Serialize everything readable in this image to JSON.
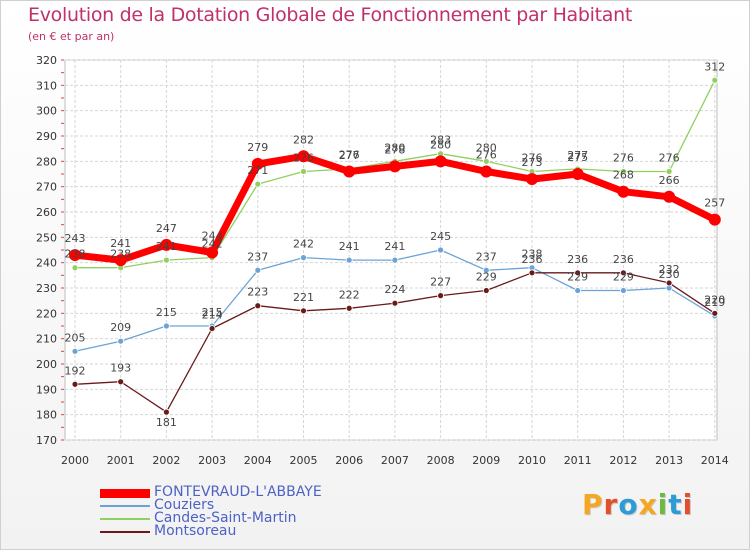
{
  "chart_data": {
    "type": "line",
    "title": "Evolution de la Dotation Globale de Fonctionnement par Habitant",
    "subtitle": "(en € et par an)",
    "xlabel": "",
    "ylabel": "",
    "categories": [
      "2000",
      "2001",
      "2002",
      "2003",
      "2004",
      "2005",
      "2006",
      "2007",
      "2008",
      "2009",
      "2010",
      "2011",
      "2012",
      "2013",
      "2014"
    ],
    "ylim": [
      170,
      320
    ],
    "yticks": [
      170,
      180,
      190,
      200,
      210,
      220,
      230,
      240,
      250,
      260,
      270,
      280,
      290,
      300,
      310,
      320
    ],
    "grid": true,
    "series": [
      {
        "name": "FONTEVRAUD-L'ABBAYE",
        "color": "#ff0000",
        "values": [
          243,
          241,
          247,
          244,
          279,
          282,
          276,
          278,
          280,
          276,
          273,
          275,
          268,
          266,
          257
        ]
      },
      {
        "name": "Couziers",
        "color": "#6ba3d6",
        "values": [
          205,
          209,
          215,
          215,
          237,
          242,
          241,
          241,
          245,
          237,
          238,
          229,
          229,
          230,
          219
        ]
      },
      {
        "name": "Candes-Saint-Martin",
        "color": "#90d060",
        "values": [
          238,
          238,
          241,
          242,
          271,
          276,
          277,
          280,
          283,
          280,
          276,
          277,
          276,
          276,
          312
        ]
      },
      {
        "name": "Montsoreau",
        "color": "#6a1a1a",
        "values": [
          192,
          193,
          181,
          214,
          223,
          221,
          222,
          224,
          227,
          229,
          236,
          236,
          236,
          232,
          220
        ]
      }
    ]
  },
  "logo": {
    "text": "Proxiti",
    "letter_colors": [
      "#f5a623",
      "#e2502b",
      "#2d9bd6",
      "#f5a623",
      "#6cbb3c",
      "#2d9bd6",
      "#e2502b"
    ]
  }
}
